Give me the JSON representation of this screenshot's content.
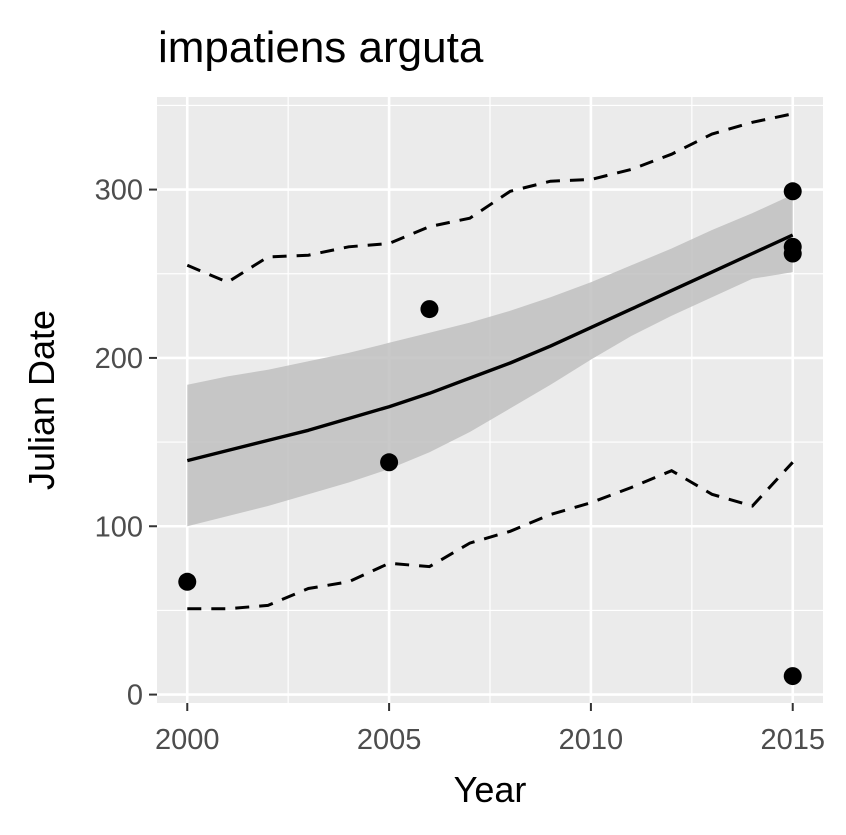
{
  "chart_data": {
    "type": "scatter",
    "title": "impatiens arguta",
    "xlabel": "Year",
    "ylabel": "Julian Date",
    "xlim": [
      1999.25,
      2015.75
    ],
    "ylim": [
      -5,
      355
    ],
    "x_ticks": [
      2000,
      2005,
      2010,
      2015
    ],
    "y_ticks": [
      0,
      100,
      200,
      300
    ],
    "grid": true,
    "legend": "none",
    "colors": {
      "panel_background": "#ebebeb",
      "grid": "#ffffff",
      "points": "#000000",
      "fit_line": "#000000",
      "confidence_band": "#bfbfbf",
      "quantile_lines": "#000000"
    },
    "points": [
      {
        "x": 2000,
        "y": 67
      },
      {
        "x": 2005,
        "y": 138
      },
      {
        "x": 2006,
        "y": 229
      },
      {
        "x": 2015,
        "y": 299
      },
      {
        "x": 2015,
        "y": 266
      },
      {
        "x": 2015,
        "y": 262
      },
      {
        "x": 2015,
        "y": 11
      }
    ],
    "fit": {
      "x": [
        2000,
        2001,
        2002,
        2003,
        2004,
        2005,
        2006,
        2007,
        2008,
        2009,
        2010,
        2011,
        2012,
        2013,
        2014,
        2015
      ],
      "y": [
        139,
        145,
        151,
        157,
        164,
        171,
        179,
        188,
        197,
        207,
        218,
        229,
        240,
        251,
        262,
        273
      ]
    },
    "confidence_band": {
      "x": [
        2000,
        2001,
        2002,
        2003,
        2004,
        2005,
        2006,
        2007,
        2008,
        2009,
        2010,
        2011,
        2012,
        2013,
        2014,
        2015
      ],
      "lower": [
        100,
        106,
        112,
        119,
        126,
        134,
        144,
        156,
        170,
        184,
        199,
        213,
        225,
        236,
        247,
        251
      ],
      "upper": [
        184,
        189,
        193,
        198,
        203,
        209,
        215,
        221,
        228,
        236,
        245,
        255,
        265,
        276,
        286,
        297
      ]
    },
    "quantile_lines": [
      {
        "x": [
          2000,
          2001,
          2002,
          2003,
          2004,
          2005,
          2006,
          2007,
          2008,
          2009,
          2010,
          2011,
          2012,
          2013,
          2014,
          2015
        ],
        "y": [
          51,
          51,
          53,
          63,
          67,
          78,
          76,
          90,
          97,
          107,
          114,
          123,
          133,
          119,
          112,
          138
        ]
      },
      {
        "x": [
          2000,
          2001,
          2002,
          2003,
          2004,
          2005,
          2006,
          2007,
          2008,
          2009,
          2010,
          2011,
          2012,
          2013,
          2014,
          2015
        ],
        "y": [
          255,
          245,
          260,
          261,
          266,
          268,
          278,
          283,
          299,
          305,
          306,
          312,
          321,
          333,
          340,
          345
        ]
      }
    ]
  }
}
